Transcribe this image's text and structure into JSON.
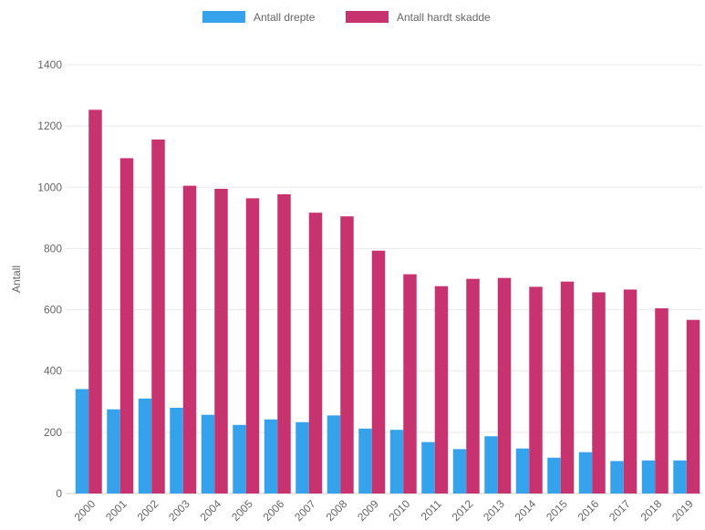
{
  "chart_data": {
    "type": "bar",
    "categories": [
      "2000",
      "2001",
      "2002",
      "2003",
      "2004",
      "2005",
      "2006",
      "2007",
      "2008",
      "2009",
      "2010",
      "2011",
      "2012",
      "2013",
      "2014",
      "2015",
      "2016",
      "2017",
      "2018",
      "2019"
    ],
    "series": [
      {
        "name": "Antall drepte",
        "color": "#36a2eb",
        "values": [
          341,
          275,
          310,
          280,
          257,
          224,
          242,
          233,
          255,
          212,
          208,
          168,
          145,
          187,
          147,
          117,
          135,
          106,
          108,
          108
        ]
      },
      {
        "name": "Antall hardt skadde",
        "color": "#c7336f",
        "values": [
          1253,
          1095,
          1156,
          1005,
          995,
          964,
          977,
          917,
          905,
          793,
          716,
          677,
          701,
          704,
          675,
          692,
          657,
          666,
          605,
          567
        ]
      }
    ],
    "ylabel": "Antall",
    "xlabel": "",
    "ylim": [
      0,
      1400
    ],
    "yticks": [
      0,
      200,
      400,
      600,
      800,
      1000,
      1200,
      1400
    ],
    "grid": true,
    "legend_position": "top"
  }
}
